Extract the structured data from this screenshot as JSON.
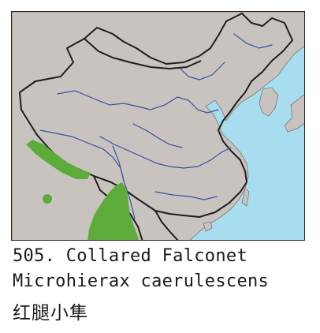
{
  "map": {
    "colors": {
      "sea": "#a8dcef",
      "land": "#c8c3bf",
      "border": "#1e1e1e",
      "river": "#3b4fa0",
      "range": "#5cab3b"
    }
  },
  "caption": {
    "title": "505. Collared Falconet",
    "latin_name": "Microhierax caerulescens",
    "chinese_name": "红腿小隼"
  }
}
